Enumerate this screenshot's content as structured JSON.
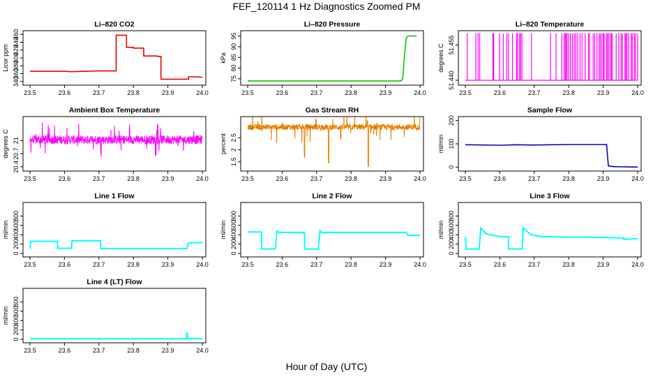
{
  "title": "FEF_120114  1 Hz Diagnostics Zoomed PM",
  "xlabel": "Hour of Day (UTC)",
  "chart_data": [
    {
      "type": "line",
      "title": "Li–820 CO2",
      "ylabel": "Licor ppm",
      "color": "#ee0000",
      "xlim": [
        23.5,
        24.0
      ],
      "ylim": [
        336,
        464
      ],
      "xticks": [
        23.5,
        23.6,
        23.7,
        23.8,
        23.9,
        24.0
      ],
      "yticks": [
        340,
        360,
        380,
        400,
        420,
        440,
        460
      ],
      "segments": [
        [
          23.5,
          366
        ],
        [
          23.6,
          366
        ],
        [
          23.62,
          365
        ],
        [
          23.7,
          367
        ],
        [
          23.75,
          367
        ],
        [
          23.75,
          458
        ],
        [
          23.78,
          458
        ],
        [
          23.78,
          427
        ],
        [
          23.8,
          427
        ],
        [
          23.8,
          425
        ],
        [
          23.83,
          425
        ],
        [
          23.83,
          405
        ],
        [
          23.87,
          405
        ],
        [
          23.87,
          404
        ],
        [
          23.88,
          404
        ],
        [
          23.88,
          346
        ],
        [
          23.96,
          346
        ],
        [
          23.96,
          352
        ],
        [
          23.97,
          352
        ],
        [
          24.0,
          351
        ]
      ]
    },
    {
      "type": "line",
      "title": "Li–820 Pressure",
      "ylabel": "kPa",
      "color": "#00cc00",
      "xlim": [
        23.5,
        24.0
      ],
      "ylim": [
        73,
        96.5
      ],
      "xticks": [
        23.5,
        23.6,
        23.7,
        23.8,
        23.9,
        24.0
      ],
      "yticks": [
        75,
        80,
        85,
        90,
        95
      ],
      "segments": [
        [
          23.5,
          74
        ],
        [
          23.945,
          74
        ],
        [
          23.95,
          75
        ],
        [
          23.955,
          86
        ],
        [
          23.96,
          94
        ],
        [
          23.965,
          95
        ],
        [
          23.99,
          95
        ]
      ]
    },
    {
      "type": "spikes",
      "title": "Li–820 Temperature",
      "ylabel": "degrees C",
      "color": "#ff00ff",
      "xlim": [
        23.5,
        24.0
      ],
      "ylim": [
        51.4388,
        51.4602
      ],
      "xticks": [
        23.5,
        23.6,
        23.7,
        23.8,
        23.9,
        24.0
      ],
      "yticks": [
        51.44,
        51.455
      ],
      "ytick_labels": [
        "51.440",
        "51.455"
      ],
      "low": 51.44,
      "high": 51.46
    },
    {
      "type": "noise",
      "title": "Ambient Box Temperature",
      "ylabel": "degrees C",
      "color": "#ff00ff",
      "xlim": [
        23.5,
        24.0
      ],
      "ylim": [
        20.35,
        21.5
      ],
      "xticks": [
        23.5,
        23.6,
        23.7,
        23.8,
        23.9,
        24.0
      ],
      "yticks": [
        20.4,
        20.7,
        21.0
      ],
      "mean": 21.02,
      "spread": 0.1,
      "spike": 0.4
    },
    {
      "type": "noise",
      "title": "Gas Stream RH",
      "ylabel": "percent",
      "color": "#ff8c00",
      "xlim": [
        23.5,
        24.0
      ],
      "ylim": [
        1.2,
        3.3
      ],
      "xticks": [
        23.5,
        23.6,
        23.7,
        23.8,
        23.9,
        24.0
      ],
      "yticks": [
        1.5,
        2.0,
        2.5
      ],
      "mean": 2.95,
      "spread": 0.12,
      "spike": 0.7,
      "dips": [
        [
          23.665,
          1.7
        ],
        [
          23.735,
          1.45
        ],
        [
          23.85,
          1.3
        ],
        [
          23.77,
          2.45
        ]
      ]
    },
    {
      "type": "line",
      "title": "Sample Flow",
      "ylabel": "ml/min",
      "color": "#0000cc",
      "xlim": [
        23.5,
        24.0
      ],
      "ylim": [
        -8,
        208
      ],
      "xticks": [
        23.5,
        23.6,
        23.7,
        23.8,
        23.9,
        24.0
      ],
      "yticks": [
        0,
        100,
        200
      ],
      "segments": [
        [
          23.5,
          96
        ],
        [
          23.6,
          94
        ],
        [
          23.65,
          96
        ],
        [
          23.7,
          95
        ],
        [
          23.8,
          97
        ],
        [
          23.91,
          97
        ],
        [
          23.915,
          5
        ],
        [
          23.93,
          2
        ],
        [
          24.0,
          0
        ]
      ]
    },
    {
      "type": "line",
      "title": "Line 1 Flow",
      "ylabel": "ml/min",
      "color": "#00ffff",
      "xlim": [
        23.5,
        24.0
      ],
      "ylim": [
        -30,
        1045
      ],
      "xticks": [
        23.5,
        23.6,
        23.7,
        23.8,
        23.9,
        24.0
      ],
      "yticks": [
        0,
        200,
        400,
        600,
        800
      ],
      "segments": [
        [
          23.5,
          100
        ],
        [
          23.502,
          260
        ],
        [
          23.58,
          260
        ],
        [
          23.58,
          110
        ],
        [
          23.62,
          110
        ],
        [
          23.622,
          270
        ],
        [
          23.705,
          270
        ],
        [
          23.705,
          105
        ],
        [
          23.955,
          105
        ],
        [
          23.96,
          230
        ],
        [
          24.0,
          230
        ]
      ]
    },
    {
      "type": "line",
      "title": "Line 2 Flow",
      "ylabel": "ml/min",
      "color": "#00ffff",
      "xlim": [
        23.5,
        24.0
      ],
      "ylim": [
        -30,
        1045
      ],
      "xticks": [
        23.5,
        23.6,
        23.7,
        23.8,
        23.9,
        24.0
      ],
      "yticks": [
        0,
        200,
        400,
        600,
        800
      ],
      "segments": [
        [
          23.5,
          460
        ],
        [
          23.54,
          460
        ],
        [
          23.54,
          95
        ],
        [
          23.58,
          95
        ],
        [
          23.585,
          480
        ],
        [
          23.59,
          450
        ],
        [
          23.665,
          450
        ],
        [
          23.665,
          95
        ],
        [
          23.705,
          95
        ],
        [
          23.71,
          490
        ],
        [
          23.715,
          450
        ],
        [
          23.96,
          450
        ],
        [
          23.965,
          390
        ],
        [
          24.0,
          390
        ]
      ]
    },
    {
      "type": "line",
      "title": "Line 3 Flow",
      "ylabel": "ml/min",
      "color": "#00ffff",
      "xlim": [
        23.5,
        24.0
      ],
      "ylim": [
        -30,
        1045
      ],
      "xticks": [
        23.5,
        23.6,
        23.7,
        23.8,
        23.9,
        24.0
      ],
      "yticks": [
        0,
        200,
        400,
        600,
        800
      ],
      "segments": [
        [
          23.5,
          350
        ],
        [
          23.502,
          95
        ],
        [
          23.54,
          95
        ],
        [
          23.545,
          540
        ],
        [
          23.56,
          420
        ],
        [
          23.6,
          360
        ],
        [
          23.625,
          360
        ],
        [
          23.625,
          95
        ],
        [
          23.665,
          95
        ],
        [
          23.668,
          550
        ],
        [
          23.69,
          400
        ],
        [
          23.72,
          360
        ],
        [
          23.8,
          350
        ],
        [
          23.91,
          340
        ],
        [
          23.96,
          330
        ],
        [
          23.96,
          300
        ],
        [
          24.0,
          320
        ]
      ]
    },
    {
      "type": "line",
      "title": "Line 4 (LT) Flow",
      "ylabel": "ml/min",
      "color": "#00ffff",
      "xlim": [
        23.5,
        24.0
      ],
      "ylim": [
        -30,
        1045
      ],
      "xticks": [
        23.5,
        23.6,
        23.7,
        23.8,
        23.9,
        24.0
      ],
      "yticks": [
        0,
        200,
        400,
        600,
        800
      ],
      "segments": [
        [
          23.5,
          12
        ],
        [
          23.955,
          12
        ],
        [
          23.955,
          150
        ],
        [
          23.958,
          20
        ],
        [
          24.0,
          12
        ]
      ]
    }
  ]
}
